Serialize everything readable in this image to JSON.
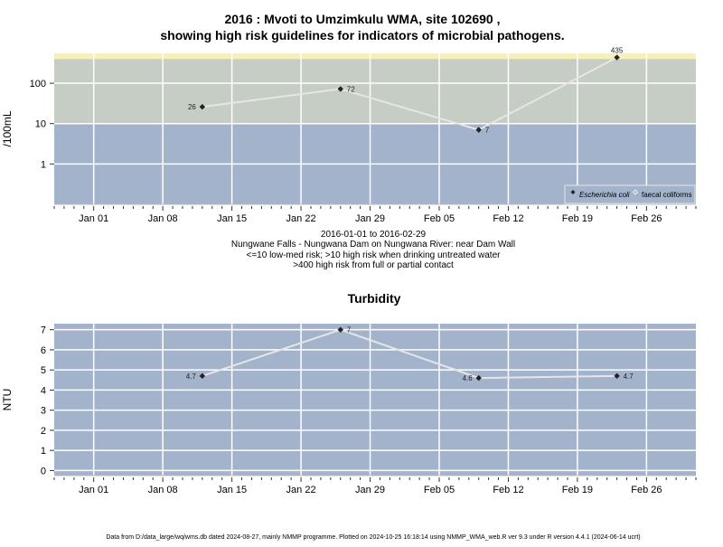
{
  "chart_data": [
    {
      "type": "line",
      "title_line1": "2016 : Mvoti to Umzimkulu WMA, site 102690 ,",
      "title_line2": "showing high risk guidelines for indicators of microbial pathogens.",
      "ylabel": "/100mL",
      "y_scale": "log",
      "ylim": [
        0.1,
        550
      ],
      "y_ticks": [
        1,
        10,
        100
      ],
      "y_tick_labels": [
        "1",
        "10",
        "100"
      ],
      "x_range": [
        "2015-12-28",
        "2016-03-02"
      ],
      "x_ticks": [
        "2016-01-01",
        "2016-01-08",
        "2016-01-15",
        "2016-01-22",
        "2016-01-29",
        "2016-02-05",
        "2016-02-12",
        "2016-02-19",
        "2016-02-26"
      ],
      "x_tick_labels": [
        "Jan 01",
        "Jan 08",
        "Jan 15",
        "Jan 22",
        "Jan 29",
        "Feb 05",
        "Feb 12",
        "Feb 19",
        "Feb 26"
      ],
      "bands": [
        {
          "from": 0.1,
          "to": 10,
          "color": "#a3b3cb"
        },
        {
          "from": 10,
          "to": 400,
          "color": "#c6cdc4"
        },
        {
          "from": 400,
          "to": 550,
          "color": "#f7f0b7"
        }
      ],
      "grid": true,
      "series": [
        {
          "name": "Escherichia coli",
          "marker": "diamond",
          "color": "#222222",
          "x": [
            "2016-01-12",
            "2016-01-26",
            "2016-02-09",
            "2016-02-23"
          ],
          "y": [
            26,
            72,
            7,
            435
          ],
          "labels": [
            "26",
            "72",
            "7",
            "435"
          ]
        }
      ],
      "legend": {
        "placement": "bottom-right",
        "entries": [
          "Escherichia coli",
          "faecal coliforms"
        ]
      },
      "xlabel_lines": [
        "2016-01-01 to 2016-02-29",
        "Nungwane Falls - Nungwana Dam on Nungwana River: near Dam Wall",
        "<=10 low-med risk; >10 high risk when drinking untreated water",
        ">400 high risk from full or partial contact"
      ]
    },
    {
      "type": "line",
      "title": "Turbidity",
      "ylabel": "NTU",
      "ylim": [
        -0.25,
        7.3
      ],
      "y_ticks": [
        0,
        1,
        2,
        3,
        4,
        5,
        6,
        7
      ],
      "x_range": [
        "2015-12-28",
        "2016-03-02"
      ],
      "x_ticks": [
        "2016-01-01",
        "2016-01-08",
        "2016-01-15",
        "2016-01-22",
        "2016-01-29",
        "2016-02-05",
        "2016-02-12",
        "2016-02-19",
        "2016-02-26"
      ],
      "x_tick_labels": [
        "Jan 01",
        "Jan 08",
        "Jan 15",
        "Jan 22",
        "Jan 29",
        "Feb 05",
        "Feb 12",
        "Feb 19",
        "Feb 26"
      ],
      "background": "#a3b3cb",
      "grid": true,
      "series": [
        {
          "marker": "diamond",
          "color": "#222222",
          "x": [
            "2016-01-12",
            "2016-01-26",
            "2016-02-09",
            "2016-02-23"
          ],
          "y": [
            4.7,
            7,
            4.6,
            4.7
          ],
          "labels": [
            "4.7",
            "7",
            "4.6",
            "4.7"
          ]
        }
      ]
    }
  ],
  "footer": "Data from D:/data_large/wq/wms.db dated 2024-08-27, mainly NMMP programme. Plotted on 2024-10-25 16:18:14 using NMMP_WMA_web.R ver 9.3 under R version 4.4.1 (2024-06-14 ucrt)"
}
